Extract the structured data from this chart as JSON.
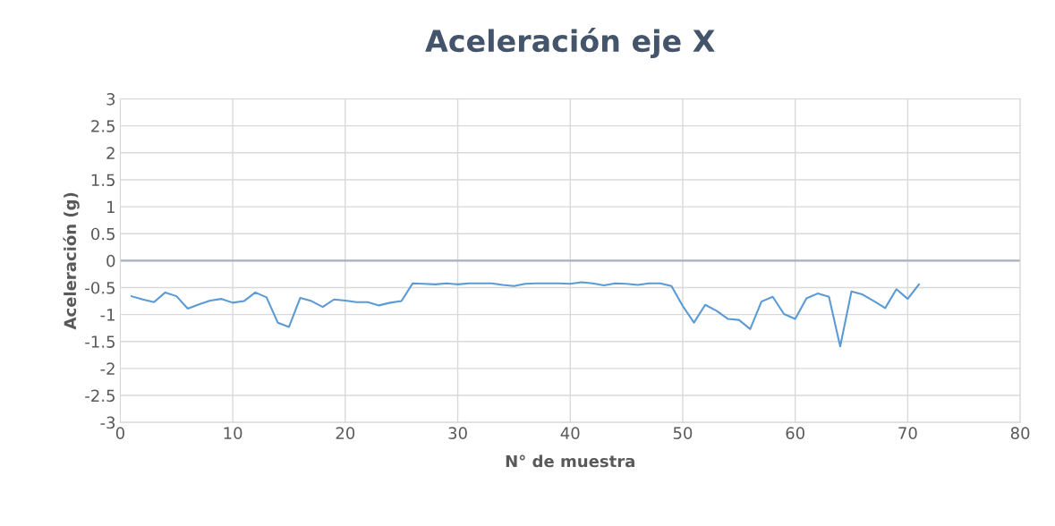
{
  "chart_data": {
    "type": "line",
    "title": "Aceleración eje X",
    "xlabel": "N° de muestra",
    "ylabel": "Aceleración (g)",
    "xlim": [
      0,
      80
    ],
    "xticks": [
      0,
      10,
      20,
      30,
      40,
      50,
      60,
      70,
      80
    ],
    "ylim": [
      -3,
      3
    ],
    "yticks": [
      -3,
      -2.5,
      -2,
      -1.5,
      -1,
      -0.5,
      0,
      0.5,
      1,
      1.5,
      2,
      2.5,
      3
    ],
    "grid": true,
    "legend": false,
    "marker": "none",
    "line_style": "solid",
    "series": [
      {
        "color": "#5b9bd5",
        "x": [
          1,
          2,
          3,
          4,
          5,
          6,
          7,
          8,
          9,
          10,
          11,
          12,
          13,
          14,
          15,
          16,
          17,
          18,
          19,
          20,
          21,
          22,
          23,
          24,
          25,
          26,
          27,
          28,
          29,
          30,
          31,
          32,
          33,
          34,
          35,
          36,
          37,
          38,
          39,
          40,
          41,
          42,
          43,
          44,
          45,
          46,
          47,
          48,
          49,
          50,
          51,
          52,
          53,
          54,
          55,
          56,
          57,
          58,
          59,
          60,
          61,
          62,
          63,
          64,
          65,
          66,
          67,
          68,
          69,
          70,
          71
        ],
        "values": [
          -0.66,
          -0.72,
          -0.77,
          -0.59,
          -0.66,
          -0.89,
          -0.81,
          -0.74,
          -0.71,
          -0.78,
          -0.75,
          -0.59,
          -0.68,
          -1.15,
          -1.23,
          -0.69,
          -0.75,
          -0.86,
          -0.72,
          -0.74,
          -0.77,
          -0.77,
          -0.83,
          -0.78,
          -0.75,
          -0.42,
          -0.43,
          -0.44,
          -0.42,
          -0.44,
          -0.42,
          -0.42,
          -0.42,
          -0.45,
          -0.47,
          -0.43,
          -0.42,
          -0.42,
          -0.42,
          -0.43,
          -0.4,
          -0.42,
          -0.46,
          -0.42,
          -0.43,
          -0.45,
          -0.42,
          -0.42,
          -0.47,
          -0.84,
          -1.15,
          -0.82,
          -0.93,
          -1.08,
          -1.1,
          -1.27,
          -0.76,
          -0.67,
          -0.99,
          -1.08,
          -0.7,
          -0.61,
          -0.67,
          -1.59,
          -0.57,
          -0.63,
          -0.75,
          -0.88,
          -0.53,
          -0.71,
          -0.44
        ]
      }
    ]
  }
}
